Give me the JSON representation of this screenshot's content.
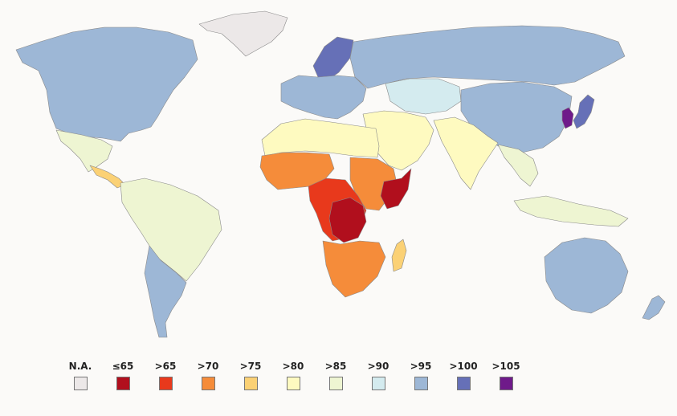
{
  "legend": {
    "items": [
      {
        "label": "N.A.",
        "color": "#ece8e8"
      },
      {
        "label": "≤65",
        "color": "#b10f1d"
      },
      {
        "label": ">65",
        "color": "#e8391c"
      },
      {
        "label": ">70",
        "color": "#f58c3a"
      },
      {
        "label": ">75",
        "color": "#fbd175"
      },
      {
        "label": ">80",
        "color": "#fefac0"
      },
      {
        "label": ">85",
        "color": "#eef5d2"
      },
      {
        "label": ">90",
        "color": "#d4ebef"
      },
      {
        "label": ">95",
        "color": "#9db7d6"
      },
      {
        "label": ">100",
        "color": "#6670b7"
      },
      {
        "label": ">105",
        "color": "#6f1a8a"
      }
    ]
  },
  "regions": [
    {
      "name": "greenland",
      "class": "N.A."
    },
    {
      "name": "north-america",
      "class": ">95"
    },
    {
      "name": "mexico",
      "class": ">85"
    },
    {
      "name": "central-america",
      "class": ">75"
    },
    {
      "name": "south-america",
      "class": ">85"
    },
    {
      "name": "southern-cone",
      "class": ">95"
    },
    {
      "name": "northern-europe",
      "class": ">100"
    },
    {
      "name": "europe",
      "class": ">95"
    },
    {
      "name": "russia",
      "class": ">95"
    },
    {
      "name": "central-asia",
      "class": ">90"
    },
    {
      "name": "china",
      "class": ">95"
    },
    {
      "name": "korea",
      "class": ">105"
    },
    {
      "name": "japan",
      "class": ">100"
    },
    {
      "name": "middle-east",
      "class": ">80"
    },
    {
      "name": "north-africa",
      "class": ">80"
    },
    {
      "name": "south-asia",
      "class": ">80"
    },
    {
      "name": "southeast-asia",
      "class": ">85"
    },
    {
      "name": "west-africa",
      "class": ">70"
    },
    {
      "name": "central-africa",
      "class": ">65"
    },
    {
      "name": "congo",
      "class": "≤65"
    },
    {
      "name": "east-africa",
      "class": ">70"
    },
    {
      "name": "horn-of-africa",
      "class": "≤65"
    },
    {
      "name": "southern-africa",
      "class": ">70"
    },
    {
      "name": "madagascar",
      "class": ">75"
    },
    {
      "name": "australia",
      "class": ">95"
    },
    {
      "name": "new-zealand",
      "class": ">95"
    }
  ]
}
